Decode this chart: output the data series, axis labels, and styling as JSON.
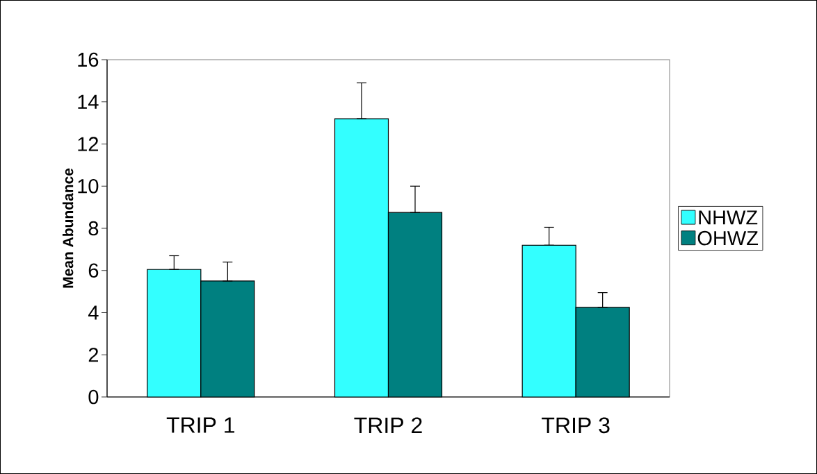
{
  "chart_data": {
    "type": "bar",
    "ylabel": "Mean Abundance",
    "categories": [
      "TRIP 1",
      "TRIP 2",
      "TRIP 3"
    ],
    "series": [
      {
        "name": "NHWZ",
        "color": "#33ffff",
        "values": [
          6.05,
          13.2,
          7.2
        ],
        "errors": [
          [
            6.05,
            6.7
          ],
          [
            13.2,
            14.9
          ],
          [
            7.2,
            8.05
          ]
        ]
      },
      {
        "name": "OHWZ",
        "color": "#008080",
        "values": [
          5.5,
          8.75,
          4.25
        ],
        "errors": [
          [
            5.5,
            6.4
          ],
          [
            8.75,
            10.0
          ],
          [
            4.25,
            4.95
          ]
        ]
      }
    ],
    "ylim": [
      0,
      16
    ],
    "yticks": [
      0,
      2,
      4,
      6,
      8,
      10,
      12,
      14,
      16
    ],
    "legend": "right"
  }
}
